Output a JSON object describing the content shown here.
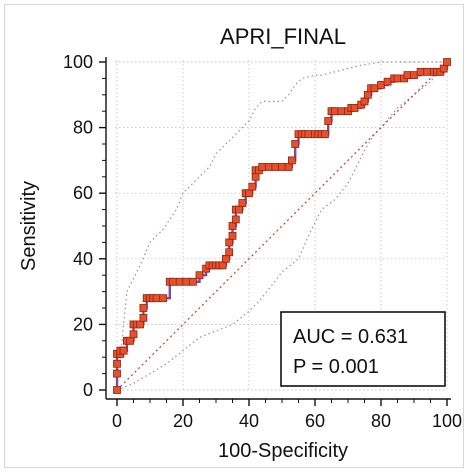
{
  "chart_data": {
    "type": "line",
    "title": "APRI_FINAL",
    "xlabel": "100-Specificity",
    "ylabel": "Sensitivity",
    "xlim": [
      0,
      100
    ],
    "ylim": [
      0,
      100
    ],
    "xticks": [
      0,
      20,
      40,
      60,
      80,
      100
    ],
    "yticks": [
      0,
      20,
      40,
      60,
      80,
      100
    ],
    "grid": true,
    "colors": {
      "roc_line": "#7b4aa8",
      "roc_marker_fill": "#e8502a",
      "roc_marker_edge": "#8e2410",
      "ci_band": "#8a8ad6",
      "diagonal": "#e03030"
    },
    "series": [
      {
        "role": "roc",
        "x": [
          0,
          0,
          0,
          0,
          1,
          1,
          2,
          2,
          3,
          4,
          5,
          5,
          6,
          7,
          8,
          8,
          9,
          10,
          11,
          12,
          14,
          16,
          17,
          19,
          21,
          23,
          25,
          27,
          28,
          29,
          30,
          31,
          32,
          33,
          34,
          34,
          35,
          35,
          36,
          36,
          37,
          38,
          39,
          40,
          41,
          42,
          42,
          43,
          44,
          46,
          48,
          50,
          52,
          53,
          54,
          55,
          56,
          57,
          58,
          60,
          61,
          62,
          63,
          64,
          65,
          66,
          68,
          70,
          71,
          72,
          74,
          75,
          76,
          77,
          78,
          80,
          82,
          84,
          85,
          87,
          88,
          90,
          92,
          94,
          96,
          97,
          98,
          99,
          100
        ],
        "y": [
          0,
          5,
          8,
          11,
          11,
          12,
          12,
          12,
          15,
          15,
          17,
          20,
          20,
          20,
          22,
          25,
          28,
          28,
          28,
          28,
          28,
          33,
          33,
          33,
          33,
          33,
          35,
          37,
          38,
          38,
          38,
          38,
          38,
          40,
          42,
          45,
          47,
          50,
          52,
          55,
          55,
          57,
          60,
          60,
          62,
          65,
          67,
          67,
          68,
          68,
          68,
          68,
          68,
          70,
          75,
          78,
          78,
          78,
          78,
          78,
          78,
          78,
          78,
          82,
          85,
          85,
          85,
          85,
          86,
          86,
          87,
          88,
          90,
          92,
          92,
          93,
          94,
          95,
          95,
          95,
          96,
          96,
          97,
          97,
          97,
          97,
          97,
          98,
          100
        ]
      }
    ],
    "ci_lower": {
      "x": [
        0,
        5,
        10,
        15,
        20,
        25,
        30,
        35,
        40,
        43,
        47,
        50,
        55,
        58,
        62,
        66,
        70,
        72,
        75,
        78,
        80,
        85,
        90,
        95,
        100
      ],
      "y": [
        0,
        2,
        5,
        8,
        12,
        16,
        18,
        20,
        24,
        27,
        32,
        36,
        40,
        47,
        55,
        58,
        63,
        67,
        73,
        78,
        80,
        86,
        90,
        94,
        100
      ]
    },
    "ci_upper": {
      "x": [
        0,
        3,
        7,
        10,
        14,
        18,
        20,
        24,
        28,
        30,
        34,
        38,
        40,
        42,
        44,
        46,
        50,
        52,
        54,
        56,
        60,
        62,
        66,
        70,
        74,
        80,
        86,
        92,
        100
      ],
      "y": [
        0,
        30,
        38,
        45,
        49,
        55,
        60,
        64,
        68,
        72,
        76,
        80,
        82,
        86,
        88,
        88,
        88,
        90,
        93,
        95,
        96,
        96,
        97,
        98,
        99,
        100,
        100,
        100,
        100
      ]
    },
    "annotation": {
      "auc": "AUC = 0.631",
      "p": "P = 0.001"
    }
  }
}
